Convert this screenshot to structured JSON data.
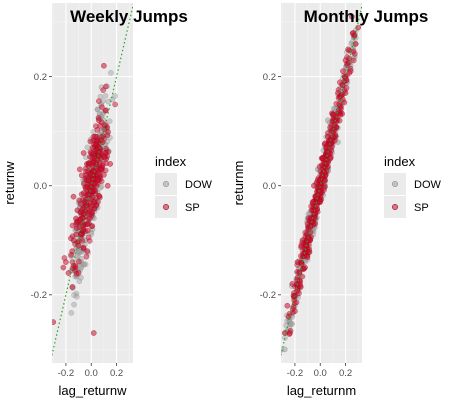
{
  "chart_data": [
    {
      "type": "scatter",
      "title": "Weekly Jumps",
      "xlabel": "lag_returnw",
      "ylabel": "returnw",
      "xlim": [
        -0.31,
        0.33
      ],
      "ylim": [
        -0.325,
        0.335
      ],
      "x_ticks": [
        -0.2,
        0.0,
        0.2
      ],
      "y_ticks": [
        -0.2,
        0.0,
        0.2
      ],
      "x_tick_labels": [
        "-0.2",
        "0.0",
        "0.2"
      ],
      "y_tick_labels": [
        "-0.2",
        "0.0",
        "0.2"
      ],
      "reference_line": {
        "style": "dotted",
        "color": "#2ca02c",
        "slope": 1,
        "intercept": 0
      },
      "grid": true,
      "legend": {
        "title": "index",
        "position": "right",
        "entries": [
          "DOW",
          "SP"
        ]
      },
      "series": [
        {
          "name": "DOW",
          "color": "#9e9e9e",
          "points": [
            [
              -0.1,
              -0.12
            ],
            [
              -0.12,
              -0.09
            ],
            [
              -0.08,
              -0.15
            ],
            [
              -0.05,
              -0.1
            ],
            [
              -0.03,
              -0.02
            ],
            [
              0.0,
              0.03
            ],
            [
              0.02,
              0.05
            ],
            [
              0.04,
              0.0
            ],
            [
              0.06,
              0.08
            ],
            [
              0.08,
              0.1
            ],
            [
              0.1,
              0.12
            ],
            [
              0.03,
              -0.04
            ],
            [
              -0.02,
              0.04
            ],
            [
              0.12,
              0.05
            ],
            [
              -0.14,
              -0.1
            ],
            [
              0.05,
              0.14
            ],
            [
              -0.06,
              -0.06
            ],
            [
              0.07,
              0.02
            ],
            [
              -0.09,
              -0.04
            ],
            [
              0.01,
              -0.08
            ]
          ]
        },
        {
          "name": "SP",
          "color": "#c8102e",
          "points": [
            [
              -0.3,
              -0.25
            ],
            [
              -0.2,
              -0.14
            ],
            [
              -0.22,
              -0.15
            ],
            [
              -0.18,
              -0.16
            ],
            [
              -0.15,
              -0.12
            ],
            [
              -0.12,
              -0.06
            ],
            [
              -0.14,
              -0.02
            ],
            [
              -0.1,
              -0.11
            ],
            [
              -0.09,
              0.03
            ],
            [
              -0.07,
              -0.06
            ],
            [
              -0.06,
              0.06
            ],
            [
              -0.05,
              -0.03
            ],
            [
              -0.04,
              0.02
            ],
            [
              -0.03,
              -0.07
            ],
            [
              -0.02,
              0.01
            ],
            [
              -0.01,
              0.04
            ],
            [
              0.0,
              -0.01
            ],
            [
              0.0,
              0.02
            ],
            [
              0.01,
              0.07
            ],
            [
              0.02,
              -0.03
            ],
            [
              0.03,
              0.05
            ],
            [
              0.04,
              0.09
            ],
            [
              0.05,
              0.01
            ],
            [
              0.06,
              0.06
            ],
            [
              0.07,
              0.11
            ],
            [
              0.08,
              0.03
            ],
            [
              0.09,
              0.08
            ],
            [
              0.1,
              0.02
            ],
            [
              0.11,
              0.06
            ],
            [
              0.13,
              0.0
            ],
            [
              0.06,
              0.12
            ],
            [
              0.03,
              0.09
            ],
            [
              -0.01,
              -0.06
            ],
            [
              -0.03,
              -0.12
            ],
            [
              -0.08,
              -0.09
            ],
            [
              -0.1,
              -0.16
            ],
            [
              0.1,
              0.22
            ],
            [
              0.0,
              0.06
            ],
            [
              0.02,
              -0.27
            ],
            [
              0.15,
              0.04
            ]
          ]
        }
      ]
    },
    {
      "type": "scatter",
      "title": "Monthly Jumps",
      "xlabel": "lag_returnm",
      "ylabel": "returnm",
      "xlim": [
        -0.31,
        0.33
      ],
      "ylim": [
        -0.325,
        0.335
      ],
      "x_ticks": [
        -0.2,
        0.0,
        0.2
      ],
      "y_ticks": [
        -0.2,
        0.0,
        0.2
      ],
      "x_tick_labels": [
        "-0.2",
        "0.0",
        "0.2"
      ],
      "y_tick_labels": [
        "-0.2",
        "0.0",
        "0.2"
      ],
      "reference_line": {
        "style": "dotted",
        "color": "#2ca02c",
        "slope": 1,
        "intercept": 0
      },
      "grid": true,
      "legend": {
        "title": "index",
        "position": "right",
        "entries": [
          "DOW",
          "SP"
        ]
      },
      "series": [
        {
          "name": "DOW",
          "color": "#9e9e9e",
          "points": [
            [
              -0.28,
              -0.3
            ],
            [
              -0.24,
              -0.25
            ],
            [
              -0.2,
              -0.22
            ],
            [
              -0.16,
              -0.15
            ],
            [
              -0.12,
              -0.14
            ],
            [
              -0.08,
              -0.06
            ],
            [
              -0.04,
              -0.06
            ],
            [
              0.0,
              0.02
            ],
            [
              0.04,
              0.02
            ],
            [
              0.08,
              0.1
            ],
            [
              0.12,
              0.1
            ],
            [
              0.16,
              0.18
            ],
            [
              0.2,
              0.2
            ],
            [
              0.24,
              0.22
            ],
            [
              0.28,
              0.26
            ],
            [
              -0.1,
              -0.06
            ],
            [
              0.06,
              0.12
            ],
            [
              -0.02,
              0.03
            ],
            [
              0.14,
              0.08
            ],
            [
              -0.18,
              -0.2
            ]
          ]
        },
        {
          "name": "SP",
          "color": "#c8102e",
          "points": [
            [
              -0.28,
              -0.27
            ],
            [
              -0.26,
              -0.22
            ],
            [
              -0.24,
              -0.27
            ],
            [
              -0.22,
              -0.18
            ],
            [
              -0.2,
              -0.23
            ],
            [
              -0.18,
              -0.14
            ],
            [
              -0.16,
              -0.18
            ],
            [
              -0.14,
              -0.1
            ],
            [
              -0.12,
              -0.15
            ],
            [
              -0.1,
              -0.07
            ],
            [
              -0.08,
              -0.1
            ],
            [
              -0.06,
              -0.03
            ],
            [
              -0.04,
              -0.07
            ],
            [
              -0.02,
              0.01
            ],
            [
              0.0,
              -0.03
            ],
            [
              0.02,
              0.05
            ],
            [
              0.04,
              0.01
            ],
            [
              0.06,
              0.09
            ],
            [
              0.08,
              0.05
            ],
            [
              0.1,
              0.13
            ],
            [
              0.12,
              0.09
            ],
            [
              0.14,
              0.17
            ],
            [
              0.16,
              0.13
            ],
            [
              0.18,
              0.21
            ],
            [
              0.2,
              0.17
            ],
            [
              0.22,
              0.25
            ],
            [
              0.24,
              0.21
            ],
            [
              0.26,
              0.28
            ],
            [
              0.28,
              0.26
            ],
            [
              0.3,
              0.29
            ],
            [
              0.25,
              0.31
            ],
            [
              -0.05,
              0.0
            ],
            [
              0.05,
              0.04
            ],
            [
              -0.15,
              -0.11
            ],
            [
              0.15,
              0.15
            ],
            [
              -0.25,
              -0.24
            ],
            [
              0.1,
              0.09
            ],
            [
              -0.1,
              -0.1
            ],
            [
              0.0,
              0.01
            ],
            [
              0.2,
              0.23
            ]
          ]
        }
      ]
    }
  ]
}
